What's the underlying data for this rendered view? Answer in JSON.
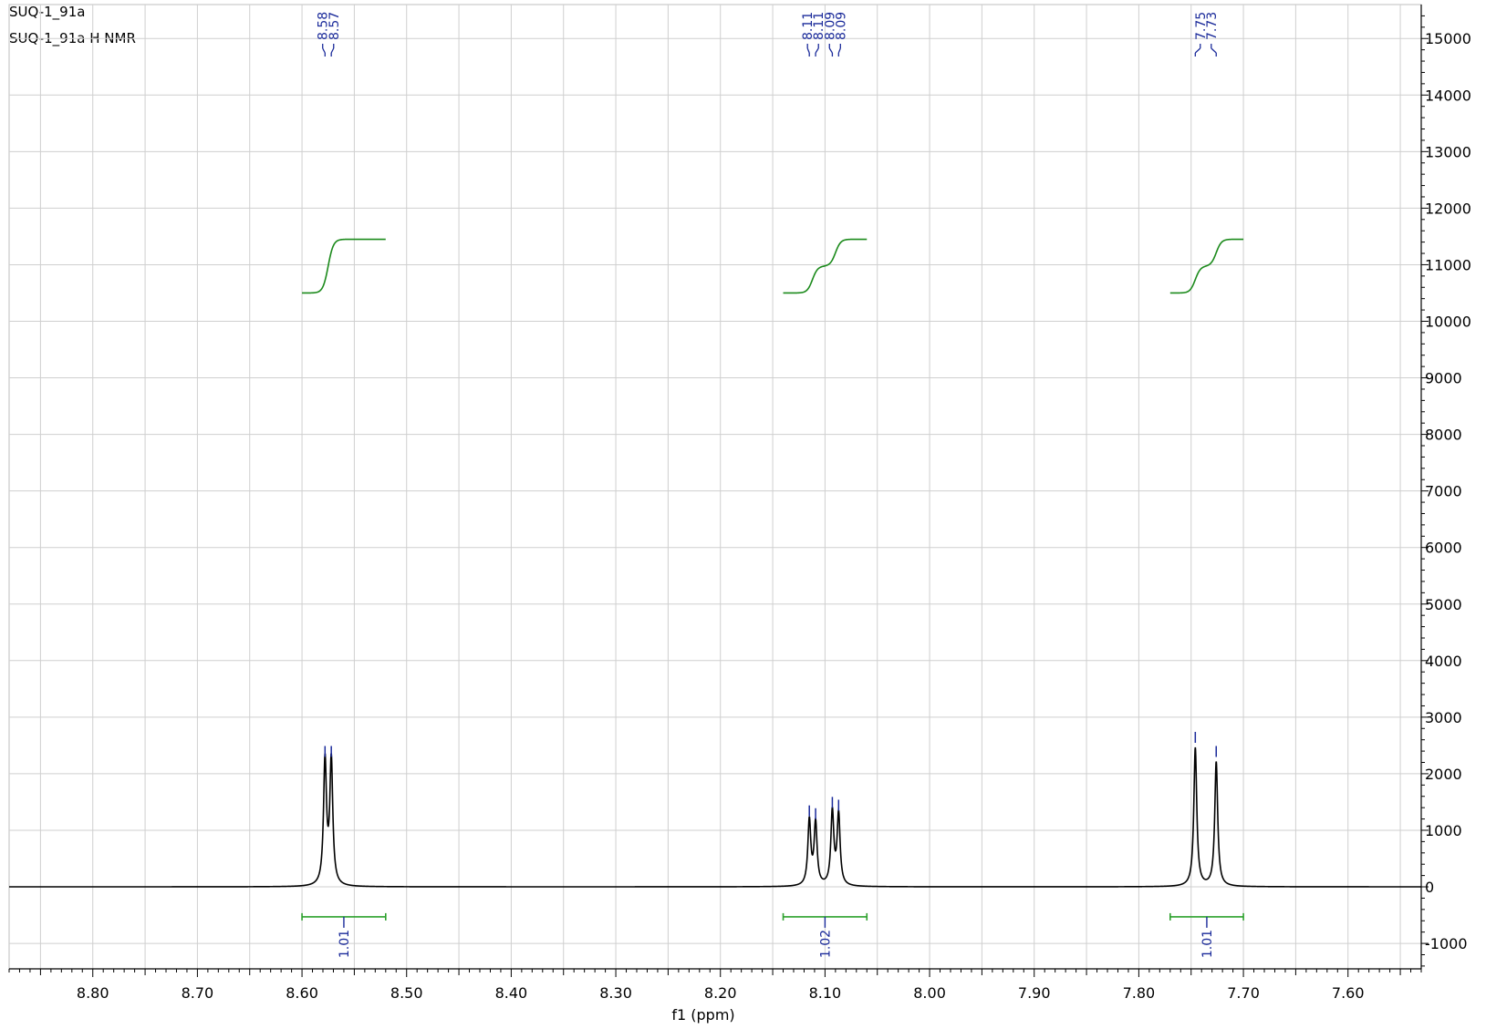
{
  "header": {
    "line1": "SUQ-1_91a",
    "line2": "SUQ-1_91a H NMR"
  },
  "chart_data": {
    "type": "line",
    "xlabel": "f1 (ppm)",
    "ylabel": "",
    "x_reversed": true,
    "xlim": [
      8.88,
      7.53
    ],
    "ylim": [
      -1450,
      15600
    ],
    "grid": true,
    "x_ticks": [
      "8.80",
      "8.70",
      "8.60",
      "8.50",
      "8.40",
      "8.30",
      "8.20",
      "8.10",
      "8.00",
      "7.90",
      "7.80",
      "7.70",
      "7.60"
    ],
    "y_ticks": [
      "15000",
      "14000",
      "13000",
      "12000",
      "11000",
      "10000",
      "9000",
      "8000",
      "7000",
      "6000",
      "5000",
      "4000",
      "3000",
      "2000",
      "1000",
      "0",
      "-1000"
    ],
    "peaks": [
      {
        "ppm": 8.578,
        "height": 2200
      },
      {
        "ppm": 8.572,
        "height": 2200
      },
      {
        "ppm": 8.115,
        "height": 1150
      },
      {
        "ppm": 8.109,
        "height": 1100
      },
      {
        "ppm": 8.093,
        "height": 1300
      },
      {
        "ppm": 8.087,
        "height": 1250
      },
      {
        "ppm": 7.746,
        "height": 2450
      },
      {
        "ppm": 7.726,
        "height": 2200
      }
    ],
    "peak_labels": [
      {
        "text": "8.58",
        "ppm": 8.578
      },
      {
        "text": "8.57",
        "ppm": 8.572
      },
      {
        "text": "8.11",
        "ppm": 8.115
      },
      {
        "text": "8.11",
        "ppm": 8.109
      },
      {
        "text": "8.09",
        "ppm": 8.093
      },
      {
        "text": "8.09",
        "ppm": 8.087
      },
      {
        "text": "7.75",
        "ppm": 7.746
      },
      {
        "text": "7.73",
        "ppm": 7.726
      }
    ],
    "integrals": [
      {
        "from": 8.6,
        "to": 8.52,
        "center": 8.56,
        "value": "1.01",
        "steps": [
          8.575
        ],
        "y_start": 10500,
        "y_end": 11450
      },
      {
        "from": 8.14,
        "to": 8.06,
        "center": 8.1,
        "value": "1.02",
        "steps": [
          8.112,
          8.09
        ],
        "y_start": 10500,
        "y_end": 11450
      },
      {
        "from": 7.77,
        "to": 7.7,
        "center": 7.735,
        "value": "1.01",
        "steps": [
          7.746,
          7.726
        ],
        "y_start": 10500,
        "y_end": 11450
      }
    ],
    "colors": {
      "spectrum": "#000000",
      "integral_curve": "#1b8a1b",
      "integral_bar": "#2ca02c",
      "labels": "#1a2a9a",
      "grid": "#cfcfcf"
    }
  }
}
